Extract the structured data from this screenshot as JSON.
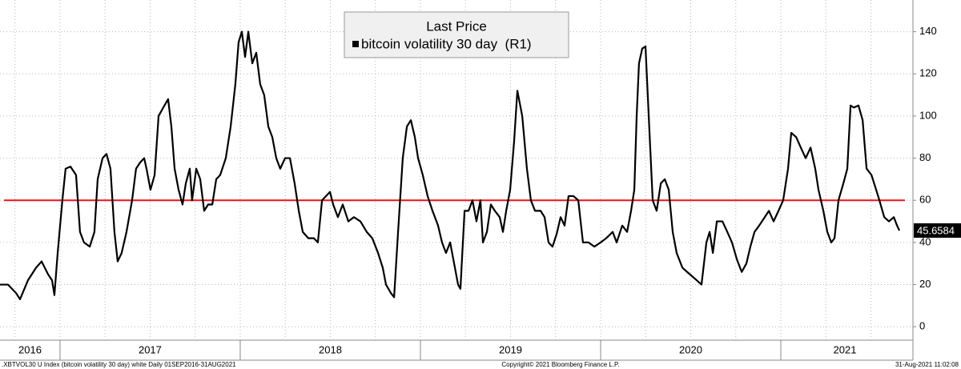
{
  "chart_data": {
    "type": "line",
    "legend_title": "Last Price",
    "series": [
      {
        "name": "bitcoin volatility 30 day  (R1)",
        "color": "#000000",
        "values": [
          20,
          20,
          16,
          13,
          22,
          28,
          31,
          25,
          22,
          15,
          35,
          60,
          75,
          76,
          72,
          45,
          40,
          38,
          45,
          70,
          80,
          82,
          75,
          45,
          31,
          35,
          45,
          60,
          75,
          78,
          80,
          75,
          65,
          72,
          100,
          104,
          108,
          95,
          75,
          65,
          58,
          68,
          75,
          60,
          75,
          70,
          55,
          58,
          58,
          70,
          72,
          80,
          95,
          115,
          135,
          140,
          128,
          140,
          125,
          130,
          115,
          110,
          95,
          90,
          80,
          75,
          80,
          80,
          68,
          55,
          45,
          42,
          42,
          40,
          60,
          62,
          64,
          58,
          52,
          58,
          50,
          52,
          50,
          45,
          42,
          35,
          28,
          20,
          16,
          14,
          45,
          80,
          95,
          98,
          90,
          80,
          72,
          62,
          55,
          48,
          40,
          35,
          40,
          30,
          20,
          18,
          55,
          55,
          60,
          50,
          60,
          40,
          45,
          58,
          55,
          52,
          45,
          55,
          65,
          88,
          112,
          100,
          75,
          60,
          55,
          55,
          52,
          40,
          38,
          44,
          52,
          48,
          62,
          62,
          60,
          40,
          40,
          38,
          40,
          42,
          45,
          40,
          48,
          45,
          55,
          65,
          100,
          125,
          132,
          133,
          100,
          60,
          55,
          68,
          70,
          65,
          45,
          35,
          28,
          26,
          24,
          22,
          20,
          40,
          45,
          35,
          50,
          50,
          45,
          40,
          32,
          26,
          30,
          38,
          45,
          48,
          52,
          55,
          50,
          55,
          60,
          75,
          92,
          90,
          85,
          80,
          85,
          75,
          65,
          55,
          45,
          40,
          42,
          60,
          68,
          75,
          105,
          104,
          105,
          98,
          75,
          72,
          65,
          60,
          52,
          50,
          52,
          48,
          45.6584
        ]
      }
    ],
    "x": [
      2016.667,
      2016.711,
      2016.756,
      2016.778,
      2016.822,
      2016.867,
      2016.898,
      2016.933,
      2016.956,
      2016.969,
      2016.987,
      2017.013,
      2017.031,
      2017.058,
      2017.089,
      2017.111,
      2017.133,
      2017.165,
      2017.191,
      2017.209,
      2017.236,
      2017.258,
      2017.28,
      2017.302,
      2017.32,
      2017.342,
      2017.369,
      2017.4,
      2017.422,
      2017.445,
      2017.467,
      2017.48,
      2017.502,
      2017.525,
      2017.547,
      2017.573,
      2017.6,
      2017.618,
      2017.636,
      2017.658,
      2017.68,
      2017.698,
      2017.72,
      2017.733,
      2017.756,
      2017.778,
      2017.8,
      2017.822,
      2017.845,
      2017.867,
      2017.889,
      2017.92,
      2017.947,
      2017.973,
      2017.991,
      2018.009,
      2018.027,
      2018.045,
      2018.067,
      2018.089,
      2018.111,
      2018.133,
      2018.156,
      2018.178,
      2018.2,
      2018.222,
      2018.249,
      2018.276,
      2018.302,
      2018.325,
      2018.347,
      2018.378,
      2018.409,
      2018.431,
      2018.454,
      2018.476,
      2018.498,
      2018.516,
      2018.542,
      2018.569,
      2018.6,
      2018.631,
      2018.667,
      2018.702,
      2018.733,
      2018.765,
      2018.791,
      2018.809,
      2018.836,
      2018.854,
      2018.876,
      2018.902,
      2018.925,
      2018.947,
      2018.969,
      2018.987,
      2019.013,
      2019.04,
      2019.067,
      2019.098,
      2019.12,
      2019.142,
      2019.165,
      2019.187,
      2019.209,
      2019.222,
      2019.245,
      2019.267,
      2019.289,
      2019.311,
      2019.333,
      2019.347,
      2019.369,
      2019.391,
      2019.413,
      2019.44,
      2019.458,
      2019.476,
      2019.498,
      2019.52,
      2019.538,
      2019.565,
      2019.591,
      2019.613,
      2019.636,
      2019.667,
      2019.689,
      2019.711,
      2019.733,
      2019.756,
      2019.778,
      2019.8,
      2019.822,
      2019.849,
      2019.876,
      2019.902,
      2019.933,
      2019.965,
      2020,
      2020.031,
      2020.067,
      2020.089,
      2020.12,
      2020.147,
      2020.169,
      2020.187,
      2020.2,
      2020.213,
      2020.231,
      2020.249,
      2020.267,
      2020.289,
      2020.311,
      2020.334,
      2020.356,
      2020.378,
      2020.4,
      2020.422,
      2020.454,
      2020.48,
      2020.507,
      2020.534,
      2020.56,
      2020.587,
      2020.605,
      2020.623,
      2020.645,
      2020.676,
      2020.703,
      2020.729,
      2020.756,
      2020.783,
      2020.809,
      2020.831,
      2020.854,
      2020.88,
      2020.911,
      2020.934,
      2020.96,
      2020.987,
      2021.013,
      2021.04,
      2021.058,
      2021.085,
      2021.111,
      2021.138,
      2021.165,
      2021.191,
      2021.209,
      2021.236,
      2021.258,
      2021.28,
      2021.298,
      2021.32,
      2021.347,
      2021.369,
      2021.387,
      2021.405,
      2021.431,
      2021.454,
      2021.476,
      2021.503,
      2021.529,
      2021.547,
      2021.574,
      2021.6,
      2021.627,
      2021.645,
      2021.658
    ],
    "xlim": [
      2016.667,
      2021.711
    ],
    "xticks": [
      2017,
      2018,
      2019,
      2020,
      2021
    ],
    "year_labels": [
      "2016",
      "2017",
      "2018",
      "2019",
      "2020",
      "2021"
    ],
    "ylim": [
      -6,
      152
    ],
    "yticks": [
      0,
      20,
      40,
      60,
      80,
      100,
      120,
      140
    ],
    "y_axis_side": "right",
    "grid": true,
    "reference_line": {
      "value": 60,
      "color": "#e8141b"
    },
    "footer_left": ".XBTVOL30 U Index (bitcoin volatility 30 day) white  Daily 01SEP2016-31AUG2021",
    "footer_center": "Copyright© 2021 Bloomberg Finance L.P.",
    "footer_right": "31-Aug-2021 11:02:08"
  }
}
